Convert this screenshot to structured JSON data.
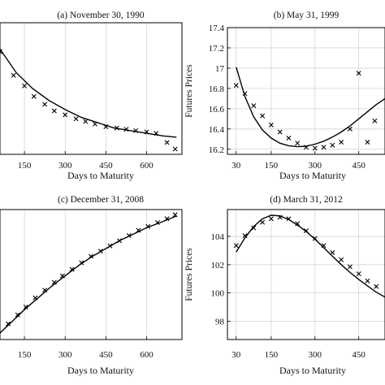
{
  "chart_data": [
    {
      "type": "scatter",
      "title": "(a) November 30, 1990",
      "xlabel": "Days to Maturity",
      "ylabel": "",
      "xlim": [
        60,
        730
      ],
      "ylim": [
        0,
        100
      ],
      "xticks": [
        150,
        300,
        450,
        600
      ],
      "yticks": [],
      "grid": true,
      "series": [
        {
          "kind": "markers",
          "points": [
            [
              60,
              78
            ],
            [
              110,
              60
            ],
            [
              150,
              52
            ],
            [
              185,
              44
            ],
            [
              225,
              38
            ],
            [
              260,
              33
            ],
            [
              300,
              30
            ],
            [
              340,
              27
            ],
            [
              375,
              25
            ],
            [
              410,
              23
            ],
            [
              450,
              21
            ],
            [
              490,
              20
            ],
            [
              525,
              19
            ],
            [
              560,
              18
            ],
            [
              600,
              17
            ],
            [
              635,
              16
            ],
            [
              675,
              9
            ],
            [
              705,
              4
            ]
          ]
        },
        {
          "kind": "line",
          "points": [
            [
              60,
              80
            ],
            [
              120,
              62
            ],
            [
              180,
              50
            ],
            [
              240,
              41
            ],
            [
              300,
              34
            ],
            [
              360,
              28
            ],
            [
              420,
              24
            ],
            [
              480,
              20
            ],
            [
              540,
              18
            ],
            [
              600,
              16
            ],
            [
              660,
              14
            ],
            [
              710,
              13
            ]
          ]
        }
      ]
    },
    {
      "type": "scatter",
      "title": "(b) May 31, 1999",
      "xlabel": "Days to Maturity",
      "ylabel": "Futures Prices",
      "xlim": [
        0,
        540
      ],
      "ylim": [
        16.15,
        17.4
      ],
      "xticks": [
        30,
        150,
        300,
        450
      ],
      "yticks": [
        16.2,
        16.4,
        16.6,
        16.8,
        17.0,
        17.2,
        17.4
      ],
      "grid": true,
      "series": [
        {
          "kind": "markers",
          "points": [
            [
              30,
              16.83
            ],
            [
              60,
              16.75
            ],
            [
              90,
              16.63
            ],
            [
              120,
              16.53
            ],
            [
              150,
              16.44
            ],
            [
              180,
              16.37
            ],
            [
              210,
              16.31
            ],
            [
              240,
              16.26
            ],
            [
              270,
              16.22
            ],
            [
              300,
              16.21
            ],
            [
              330,
              16.22
            ],
            [
              360,
              16.24
            ],
            [
              390,
              16.27
            ],
            [
              420,
              16.4
            ],
            [
              450,
              16.95
            ],
            [
              480,
              16.27
            ],
            [
              505,
              16.48
            ]
          ]
        },
        {
          "kind": "line",
          "points": [
            [
              30,
              17.01
            ],
            [
              60,
              16.72
            ],
            [
              90,
              16.52
            ],
            [
              120,
              16.39
            ],
            [
              150,
              16.31
            ],
            [
              180,
              16.26
            ],
            [
              210,
              16.235
            ],
            [
              240,
              16.225
            ],
            [
              270,
              16.23
            ],
            [
              300,
              16.25
            ],
            [
              330,
              16.28
            ],
            [
              360,
              16.32
            ],
            [
              390,
              16.37
            ],
            [
              420,
              16.43
            ],
            [
              450,
              16.5
            ],
            [
              480,
              16.57
            ],
            [
              510,
              16.64
            ],
            [
              540,
              16.7
            ]
          ]
        }
      ]
    },
    {
      "type": "scatter",
      "title": "(c) December 31, 2008",
      "xlabel": "Days to Maturity",
      "ylabel": "",
      "xlim": [
        60,
        730
      ],
      "ylim": [
        0,
        100
      ],
      "xticks": [
        150,
        300,
        450,
        600
      ],
      "yticks": [],
      "grid": true,
      "series": [
        {
          "kind": "markers",
          "points": [
            [
              90,
              12
            ],
            [
              125,
              19
            ],
            [
              155,
              25
            ],
            [
              190,
              32
            ],
            [
              225,
              38
            ],
            [
              260,
              44
            ],
            [
              290,
              49
            ],
            [
              325,
              54
            ],
            [
              360,
              59
            ],
            [
              395,
              64
            ],
            [
              430,
              68
            ],
            [
              465,
              72
            ],
            [
              500,
              76
            ],
            [
              535,
              80
            ],
            [
              570,
              84
            ],
            [
              605,
              87
            ],
            [
              640,
              90
            ],
            [
              675,
              93
            ],
            [
              705,
              96
            ]
          ]
        },
        {
          "kind": "line",
          "points": [
            [
              60,
              5
            ],
            [
              100,
              13
            ],
            [
              150,
              23
            ],
            [
              200,
              32
            ],
            [
              250,
              41
            ],
            [
              300,
              49
            ],
            [
              350,
              57
            ],
            [
              400,
              64
            ],
            [
              450,
              70
            ],
            [
              500,
              76
            ],
            [
              550,
              81
            ],
            [
              600,
              86
            ],
            [
              650,
              90
            ],
            [
              710,
              95
            ]
          ]
        }
      ]
    },
    {
      "type": "scatter",
      "title": "(d) March 31, 2012",
      "xlabel": "Days to Maturity",
      "ylabel": "Futures Prices",
      "xlim": [
        0,
        540
      ],
      "ylim": [
        96.7,
        105.9
      ],
      "xticks": [
        30,
        150,
        300,
        450
      ],
      "yticks": [
        98,
        100,
        102,
        104
      ],
      "grid": true,
      "series": [
        {
          "kind": "markers",
          "points": [
            [
              30,
              103.35
            ],
            [
              60,
              104.05
            ],
            [
              90,
              104.6
            ],
            [
              120,
              105.0
            ],
            [
              150,
              105.25
            ],
            [
              180,
              105.35
            ],
            [
              210,
              105.25
            ],
            [
              240,
              104.9
            ],
            [
              270,
              104.4
            ],
            [
              300,
              103.85
            ],
            [
              330,
              103.35
            ],
            [
              360,
              102.85
            ],
            [
              390,
              102.35
            ],
            [
              420,
              101.85
            ],
            [
              450,
              101.35
            ],
            [
              480,
              100.85
            ],
            [
              510,
              100.45
            ]
          ]
        },
        {
          "kind": "line",
          "points": [
            [
              30,
              102.9
            ],
            [
              60,
              103.9
            ],
            [
              90,
              104.7
            ],
            [
              120,
              105.25
            ],
            [
              150,
              105.5
            ],
            [
              180,
              105.45
            ],
            [
              210,
              105.2
            ],
            [
              240,
              104.8
            ],
            [
              270,
              104.35
            ],
            [
              300,
              103.8
            ],
            [
              330,
              103.2
            ],
            [
              360,
              102.6
            ],
            [
              390,
              102.0
            ],
            [
              420,
              101.45
            ],
            [
              450,
              100.95
            ],
            [
              480,
              100.5
            ],
            [
              510,
              100.05
            ],
            [
              540,
              99.7
            ]
          ]
        }
      ]
    }
  ]
}
